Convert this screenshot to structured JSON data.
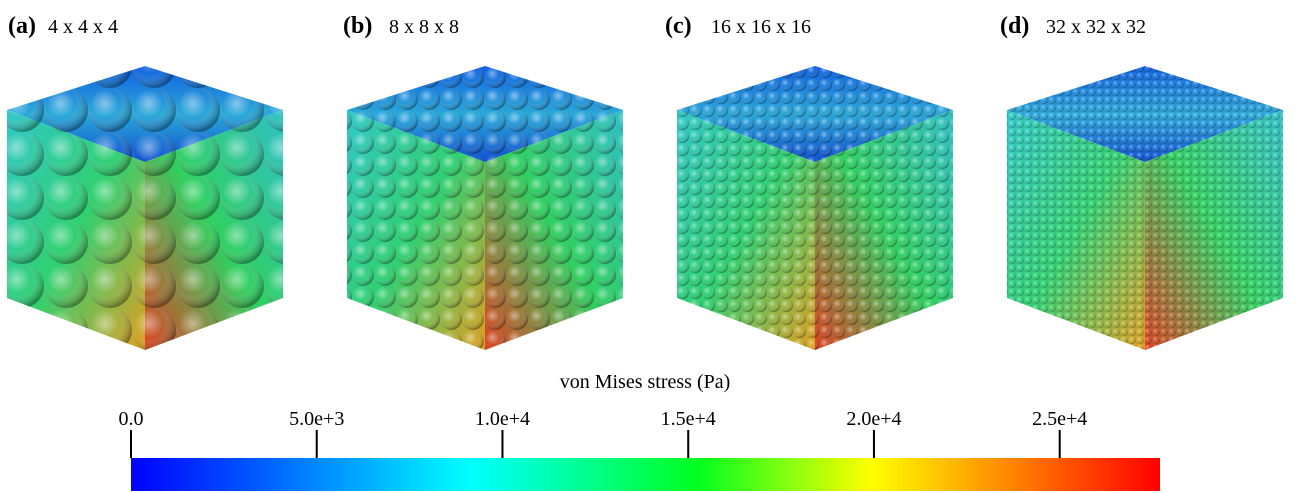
{
  "panels": [
    {
      "letter": "(a)",
      "caption": "4 x 4 x 4"
    },
    {
      "letter": "(b)",
      "caption": "8 x 8 x 8"
    },
    {
      "letter": "(c)",
      "caption": "16 x 16 x 16"
    },
    {
      "letter": "(d)",
      "caption": "32 x 32 x 32"
    }
  ],
  "colorbar": {
    "title": "von Mises stress (Pa)",
    "range": [
      0,
      27700
    ],
    "ticks": [
      {
        "value": 0,
        "label": "0.0"
      },
      {
        "value": 5000,
        "label": "5.0e+3"
      },
      {
        "value": 10000,
        "label": "1.0e+4"
      },
      {
        "value": 15000,
        "label": "1.5e+4"
      },
      {
        "value": 20000,
        "label": "2.0e+4"
      },
      {
        "value": 25000,
        "label": "2.5e+4"
      }
    ]
  }
}
